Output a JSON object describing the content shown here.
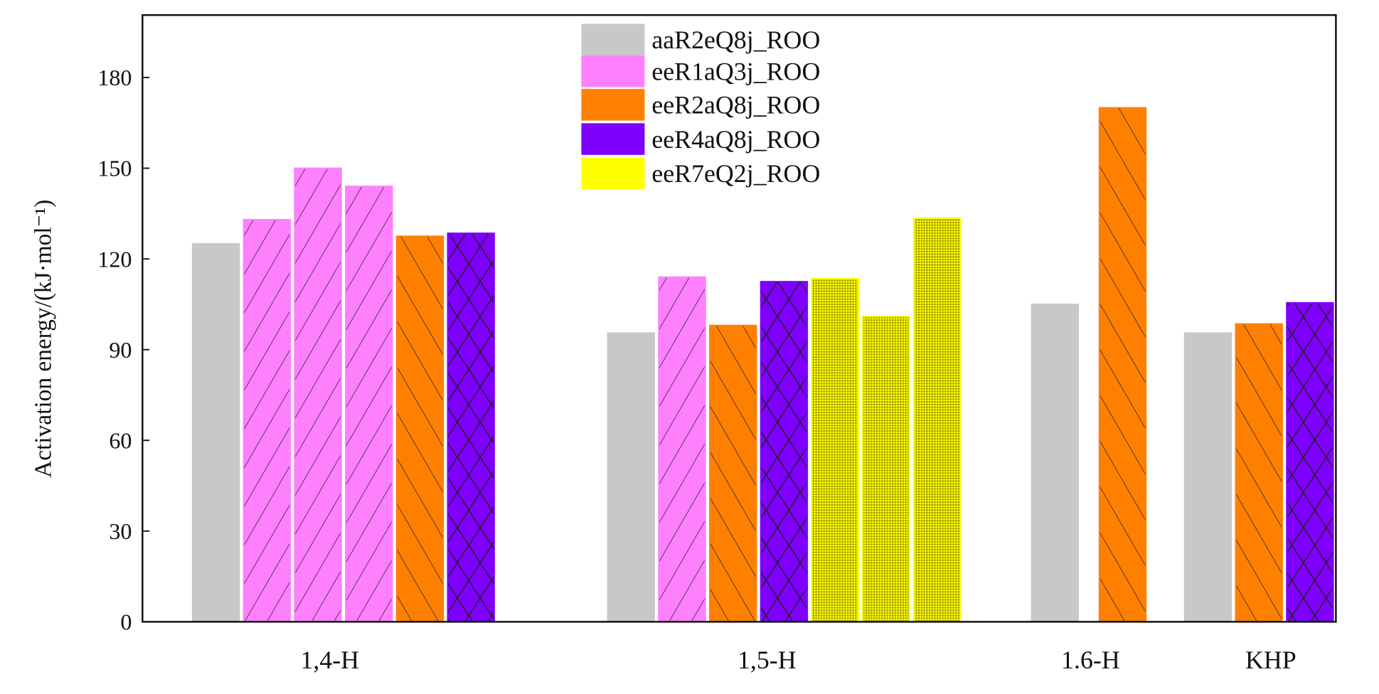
{
  "chart_data": {
    "type": "bar",
    "title": "",
    "xlabel": "",
    "ylabel": "Activation energy/(kJ·mol⁻¹)",
    "ylim": [
      0,
      200
    ],
    "yticks": [
      "0",
      "30",
      "60",
      "90",
      "120",
      "150",
      "180"
    ],
    "grid": false,
    "legend_position": "top-center",
    "categories": [
      "1,4-H",
      "1,5-H",
      "1.6-H",
      "KHP"
    ],
    "series": [
      {
        "name": "aaR2eQ8j_ROO",
        "color": "#c8c8c8",
        "pattern": "solid"
      },
      {
        "name": "eeR1aQ3j_ROO",
        "color": "#ff80ff",
        "pattern": "forward-diagonal"
      },
      {
        "name": "eeR2aQ8j_ROO",
        "color": "#ff8000",
        "pattern": "backward-diagonal"
      },
      {
        "name": "eeR4aQ8j_ROO",
        "color": "#8000ff",
        "pattern": "crosshatch"
      },
      {
        "name": "eeR7eQ2j_ROO",
        "color": "#ffff00",
        "pattern": "dots"
      }
    ],
    "bars": [
      {
        "category": "1,4-H",
        "series": 0,
        "value": 125
      },
      {
        "category": "1,4-H",
        "series": 1,
        "value": 133
      },
      {
        "category": "1,4-H",
        "series": 1,
        "value": 150
      },
      {
        "category": "1,4-H",
        "series": 1,
        "value": 144
      },
      {
        "category": "1,4-H",
        "series": 2,
        "value": 127.5
      },
      {
        "category": "1,4-H",
        "series": 3,
        "value": 128.5
      },
      {
        "category": "1,5-H",
        "series": 0,
        "value": 95.5
      },
      {
        "category": "1,5-H",
        "series": 1,
        "value": 114
      },
      {
        "category": "1,5-H",
        "series": 2,
        "value": 98
      },
      {
        "category": "1,5-H",
        "series": 3,
        "value": 112.5
      },
      {
        "category": "1,5-H",
        "series": 4,
        "value": 113.5
      },
      {
        "category": "1,5-H",
        "series": 4,
        "value": 101
      },
      {
        "category": "1,5-H",
        "series": 4,
        "value": 133.5
      },
      {
        "category": "1.6-H",
        "series": 0,
        "value": 105
      },
      {
        "category": "1.6-H",
        "series": 2,
        "value": 170
      },
      {
        "category": "KHP",
        "series": 0,
        "value": 95.5
      },
      {
        "category": "KHP",
        "series": 2,
        "value": 98.5
      },
      {
        "category": "KHP",
        "series": 3,
        "value": 105.5
      }
    ]
  }
}
